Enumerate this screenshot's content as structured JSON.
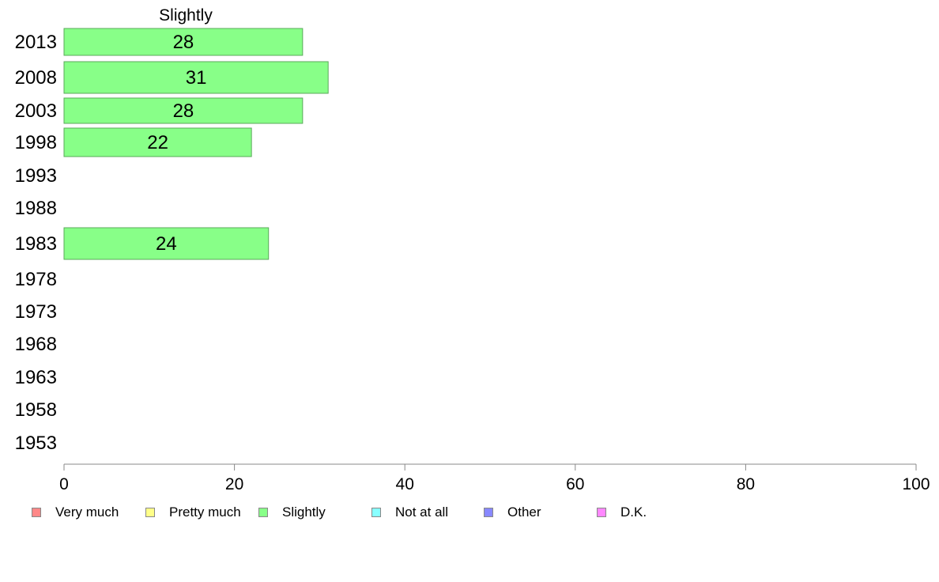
{
  "chart_data": {
    "type": "bar",
    "orientation": "horizontal",
    "title": "Slightly",
    "categories": [
      "2013",
      "2008",
      "2003",
      "1998",
      "1993",
      "1988",
      "1983",
      "1978",
      "1973",
      "1968",
      "1963",
      "1958",
      "1953"
    ],
    "series": [
      {
        "name": "Slightly",
        "color": "#88ff88",
        "values": [
          28,
          31,
          28,
          22,
          null,
          null,
          24,
          null,
          null,
          null,
          null,
          null,
          null
        ],
        "labels": [
          "28",
          "31",
          "28",
          "22",
          "",
          "",
          "24",
          "",
          "",
          "",
          "",
          "",
          ""
        ]
      }
    ],
    "xlim": [
      0,
      100
    ],
    "xticks": [
      "0",
      "20",
      "40",
      "60",
      "80",
      "100"
    ],
    "legend": {
      "position": "bottom",
      "items": [
        {
          "label": "Very much",
          "color": "#ff8888"
        },
        {
          "label": "Pretty much",
          "color": "#ffff88"
        },
        {
          "label": "Slightly",
          "color": "#88ff88"
        },
        {
          "label": "Not at all",
          "color": "#88ffff"
        },
        {
          "label": "Other",
          "color": "#8888ff"
        },
        {
          "label": "D.K.",
          "color": "#ff88ff"
        }
      ]
    }
  }
}
